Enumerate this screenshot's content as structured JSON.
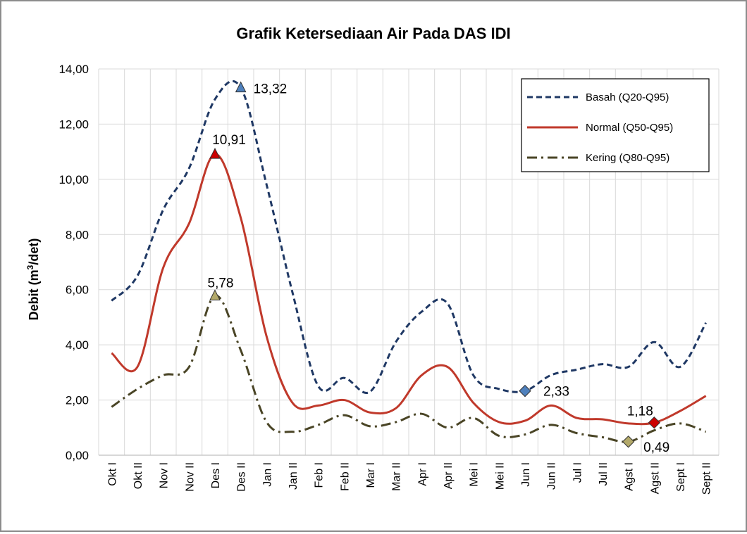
{
  "chart_data": {
    "type": "line",
    "title": "Grafik Ketersediaan Air Pada DAS IDI",
    "xlabel": "",
    "ylabel": "Debit (m³/det)",
    "ylim": [
      0,
      14
    ],
    "yticks": [
      0,
      2,
      4,
      6,
      8,
      10,
      12,
      14
    ],
    "yticklabels": [
      "0,00",
      "2,00",
      "4,00",
      "6,00",
      "8,00",
      "10,00",
      "12,00",
      "14,00"
    ],
    "grid": true,
    "legend_position": "top-right",
    "categories": [
      "Okt I",
      "Okt II",
      "Nov I",
      "Nov II",
      "Des I",
      "Des II",
      "Jan I",
      "Jan II",
      "Feb I",
      "Feb II",
      "Mar I",
      "Mar II",
      "Apr I",
      "Apr II",
      "Mei I",
      "Mei II",
      "Jun I",
      "Jun II",
      "Jul I",
      "Jul II",
      "Agst I",
      "Agst II",
      "Sept I",
      "Sept II"
    ],
    "series": [
      {
        "name": "Basah (Q20-Q95)",
        "color": "#1f3864",
        "dash": "dashed",
        "values": [
          5.6,
          6.5,
          8.9,
          10.4,
          12.9,
          13.32,
          9.8,
          5.9,
          2.5,
          2.8,
          2.3,
          4.1,
          5.2,
          5.5,
          2.9,
          2.4,
          2.33,
          2.9,
          3.1,
          3.3,
          3.2,
          4.1,
          3.2,
          4.8
        ],
        "annotations": [
          {
            "index": 5,
            "label": "13,32",
            "marker": "triangle",
            "marker_color": "#4f81bd"
          },
          {
            "index": 16,
            "label": "2,33",
            "marker": "diamond",
            "marker_color": "#4f81bd"
          }
        ]
      },
      {
        "name": "Normal (Q50-Q95)",
        "color": "#c0392b",
        "dash": "solid",
        "values": [
          3.7,
          3.2,
          6.8,
          8.4,
          10.91,
          8.6,
          4.3,
          1.9,
          1.8,
          2.0,
          1.55,
          1.7,
          2.9,
          3.2,
          1.9,
          1.2,
          1.25,
          1.8,
          1.35,
          1.3,
          1.15,
          1.18,
          1.6,
          2.15
        ],
        "annotations": [
          {
            "index": 4,
            "label": "10,91",
            "marker": "triangle",
            "marker_color": "#cc0000"
          },
          {
            "index": 21,
            "label": "1,18",
            "marker": "diamond",
            "marker_color": "#cc0000"
          }
        ]
      },
      {
        "name": "Kering (Q80-Q95)",
        "color": "#4a4526",
        "dash": "dashdot",
        "values": [
          1.75,
          2.4,
          2.9,
          3.2,
          5.78,
          3.8,
          1.2,
          0.85,
          1.1,
          1.45,
          1.05,
          1.2,
          1.5,
          1.0,
          1.35,
          0.7,
          0.75,
          1.1,
          0.8,
          0.65,
          0.49,
          0.9,
          1.15,
          0.85
        ],
        "annotations": [
          {
            "index": 4,
            "label": "5,78",
            "marker": "triangle",
            "marker_color": "#b3a96a"
          },
          {
            "index": 20,
            "label": "0,49",
            "marker": "diamond",
            "marker_color": "#b3a96a"
          }
        ]
      }
    ]
  }
}
